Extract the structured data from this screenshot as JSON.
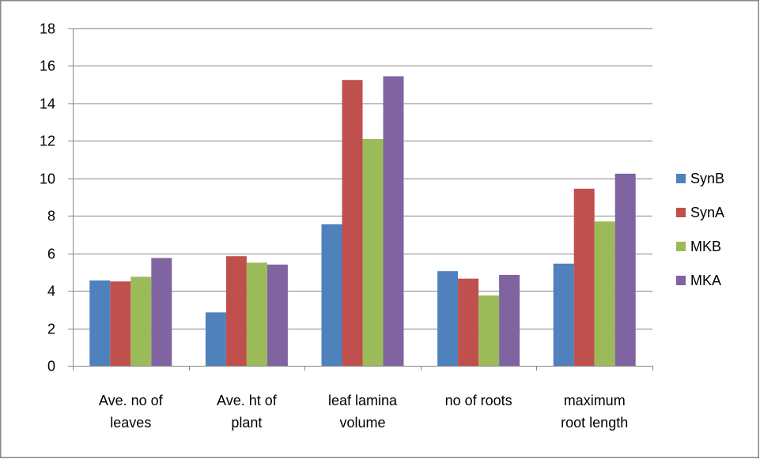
{
  "chart_data": {
    "type": "bar",
    "title": "",
    "xlabel": "",
    "ylabel": "",
    "ylim": [
      0,
      18
    ],
    "yticks": [
      0,
      2,
      4,
      6,
      8,
      10,
      12,
      14,
      16,
      18
    ],
    "grid": true,
    "legend_position": "right",
    "categories": [
      [
        "Ave. no of",
        "leaves"
      ],
      [
        "Ave. ht of",
        "plant"
      ],
      [
        "leaf lamina",
        "volume"
      ],
      [
        "no of roots"
      ],
      [
        "maximum",
        "root length"
      ]
    ],
    "series": [
      {
        "name": "SynB",
        "color": "#4f81bd",
        "values": [
          4.55,
          2.85,
          7.55,
          5.05,
          5.45
        ]
      },
      {
        "name": "SynA",
        "color": "#c0504d",
        "values": [
          4.5,
          5.85,
          15.25,
          4.65,
          9.45
        ]
      },
      {
        "name": "MKB",
        "color": "#9bbb59",
        "values": [
          4.75,
          5.5,
          12.1,
          3.75,
          7.7
        ]
      },
      {
        "name": "MKA",
        "color": "#8064a2",
        "values": [
          5.75,
          5.4,
          15.45,
          4.85,
          10.25
        ]
      }
    ]
  }
}
